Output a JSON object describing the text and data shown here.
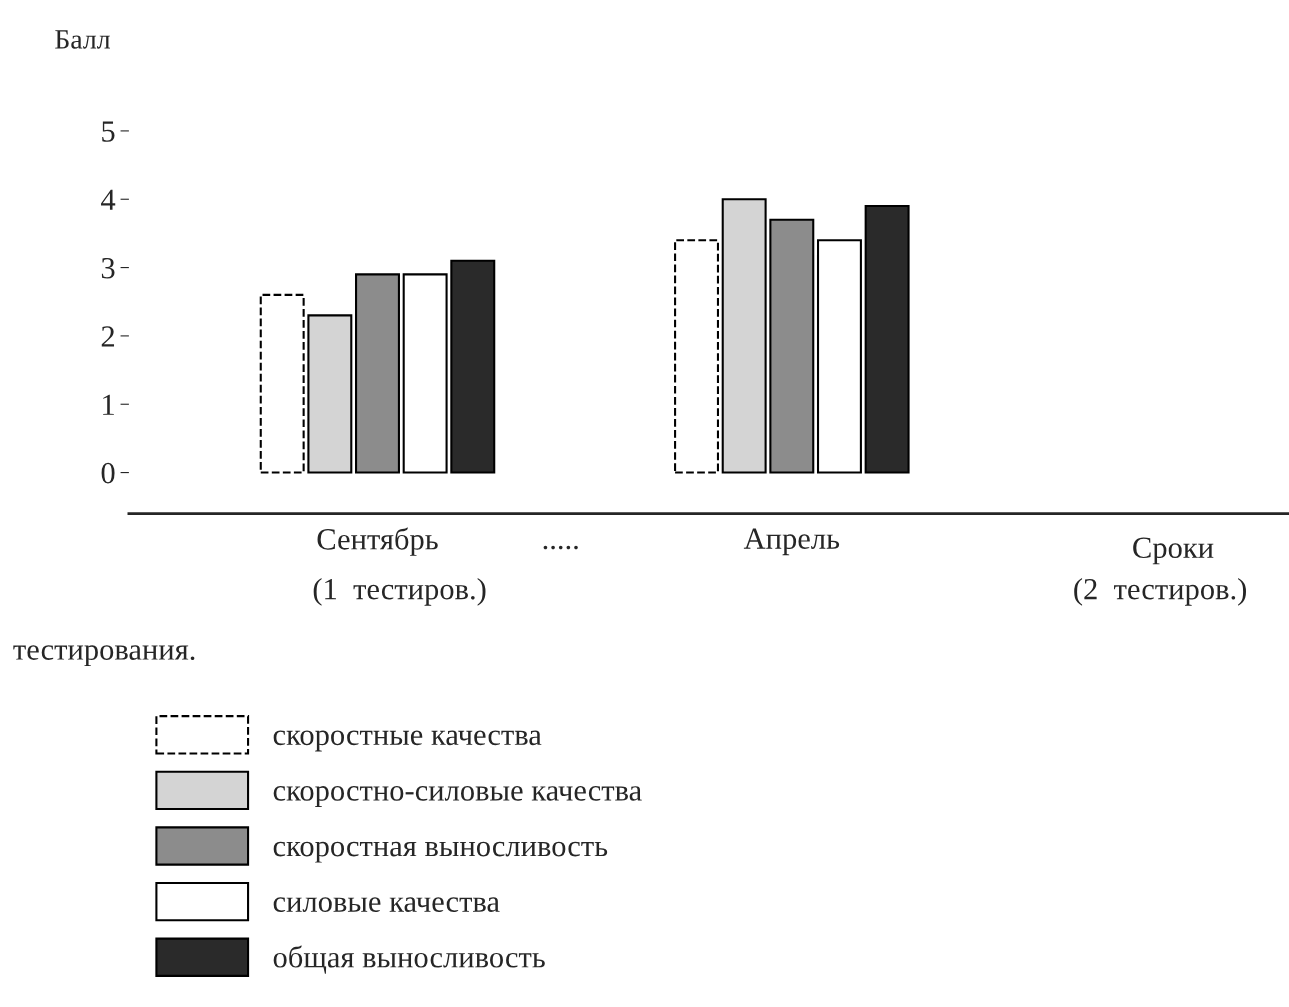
{
  "chart_data": {
    "type": "bar",
    "ylabel": "Балл",
    "xlabel": "Сроки",
    "categories": [
      "Сентябрь",
      "Апрель"
    ],
    "series": [
      {
        "name": "скоростные качества",
        "color": "#ffffff",
        "line_style": "dashed",
        "values": [
          2.6,
          3.4
        ]
      },
      {
        "name": "скоростно-силовые качества",
        "color": "#d4d4d4",
        "values": [
          2.3,
          4.0
        ]
      },
      {
        "name": "скоростная выносливость",
        "color": "#8c8c8c",
        "values": [
          2.9,
          3.7
        ]
      },
      {
        "name": "силовые качества",
        "color": "#ffffff",
        "values": [
          2.9,
          3.4
        ]
      },
      {
        "name": "общая выносливость",
        "color": "#2a2a2a",
        "values": [
          3.1,
          3.9
        ]
      }
    ],
    "ylim": [
      -0.6,
      5
    ],
    "yticks": [
      0,
      1,
      2,
      3,
      4,
      5
    ],
    "grid": false,
    "legend": "bottom left",
    "annotations": [
      ".....",
      "(1  тестиров.)",
      "(2  тестиров.)",
      "тестирования."
    ]
  }
}
